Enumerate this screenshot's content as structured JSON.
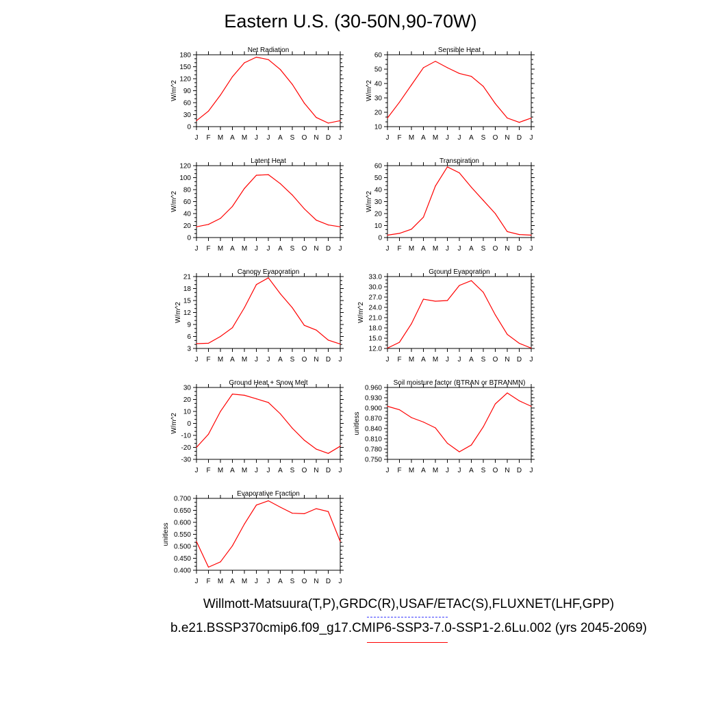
{
  "page": {
    "title": "Eastern U.S. (30-50N,90-70W)",
    "footer_line_1": "Willmott-Matsuura(T,P),GRDC(R),USAF/ETAC(S),FLUXNET(LHF,GPP)",
    "footer_line_2": "b.e21.BSSP370cmip6.f09_g17.CMIP6-SSP3-7.0-SSP1-2.6Lu.002 (yrs 2045-2069)",
    "line_color": "#ff0000",
    "observation_line_color": "#3a3aff"
  },
  "chart_data": [
    {
      "type": "line",
      "title": "Net Radiation",
      "ylabel": "W/m^2",
      "categories": [
        "J",
        "F",
        "M",
        "A",
        "M",
        "J",
        "J",
        "A",
        "S",
        "O",
        "N",
        "D",
        "J"
      ],
      "ylim": [
        0,
        180
      ],
      "yticks": [
        "0",
        "30",
        "60",
        "90",
        "120",
        "150",
        "180"
      ],
      "series": [
        {
          "values": [
            15,
            39,
            79,
            125,
            160,
            174,
            168,
            143,
            106,
            59,
            23,
            9,
            15
          ]
        }
      ]
    },
    {
      "type": "line",
      "title": "Sensible Heat",
      "ylabel": "W/m^2",
      "categories": [
        "J",
        "F",
        "M",
        "A",
        "M",
        "J",
        "J",
        "A",
        "S",
        "O",
        "N",
        "D",
        "J"
      ],
      "ylim": [
        10,
        60
      ],
      "yticks": [
        "10",
        "20",
        "30",
        "40",
        "50",
        "60"
      ],
      "series": [
        {
          "values": [
            16,
            27,
            39,
            51,
            55.5,
            51,
            47,
            45,
            38,
            26,
            16,
            13,
            16
          ]
        }
      ]
    },
    {
      "type": "line",
      "title": "Latent Heat",
      "ylabel": "W/m^2",
      "categories": [
        "J",
        "F",
        "M",
        "A",
        "M",
        "J",
        "J",
        "A",
        "S",
        "O",
        "N",
        "D",
        "J"
      ],
      "ylim": [
        0,
        120
      ],
      "yticks": [
        "0",
        "20",
        "40",
        "60",
        "80",
        "100",
        "120"
      ],
      "series": [
        {
          "values": [
            18,
            22,
            32,
            52,
            82,
            104,
            105,
            90,
            71,
            48,
            29,
            21,
            18
          ]
        }
      ]
    },
    {
      "type": "line",
      "title": "Transpiration",
      "ylabel": "W/m^2",
      "categories": [
        "J",
        "F",
        "M",
        "A",
        "M",
        "J",
        "J",
        "A",
        "S",
        "O",
        "N",
        "D",
        "J"
      ],
      "ylim": [
        0,
        60
      ],
      "yticks": [
        "0",
        "10",
        "20",
        "30",
        "40",
        "50",
        "60"
      ],
      "series": [
        {
          "values": [
            2,
            3.5,
            7,
            17,
            43,
            59,
            54,
            42,
            31,
            20,
            5,
            2.5,
            2
          ]
        }
      ]
    },
    {
      "type": "line",
      "title": "Canopy Evaporation",
      "ylabel": "W/m^2",
      "categories": [
        "J",
        "F",
        "M",
        "A",
        "M",
        "J",
        "J",
        "A",
        "S",
        "O",
        "N",
        "D",
        "J"
      ],
      "ylim": [
        3,
        21
      ],
      "yticks": [
        "3",
        "6",
        "9",
        "12",
        "15",
        "18",
        "21"
      ],
      "series": [
        {
          "values": [
            4.2,
            4.3,
            6,
            8.2,
            13.2,
            19,
            20.7,
            16.7,
            13.2,
            8.8,
            7.6,
            5.1,
            4.1
          ]
        }
      ]
    },
    {
      "type": "line",
      "title": "Ground Evaporation",
      "ylabel": "W/m^2",
      "categories": [
        "J",
        "F",
        "M",
        "A",
        "M",
        "J",
        "J",
        "A",
        "S",
        "O",
        "N",
        "D",
        "J"
      ],
      "ylim": [
        12,
        33
      ],
      "yticks": [
        "12.0",
        "15.0",
        "18.0",
        "21.0",
        "24.0",
        "27.0",
        "30.0",
        "33.0"
      ],
      "series": [
        {
          "values": [
            12.1,
            13.8,
            19.2,
            26.4,
            25.8,
            26,
            30.4,
            31.8,
            28.4,
            21.8,
            16.1,
            13.5,
            12.1
          ]
        }
      ]
    },
    {
      "type": "line",
      "title": "Ground Heat + Snow Melt",
      "ylabel": "W/m^2",
      "categories": [
        "J",
        "F",
        "M",
        "A",
        "M",
        "J",
        "J",
        "A",
        "S",
        "O",
        "N",
        "D",
        "J"
      ],
      "ylim": [
        -30,
        30
      ],
      "yticks": [
        "-30",
        "-20",
        "-10",
        "0",
        "10",
        "20",
        "30"
      ],
      "series": [
        {
          "values": [
            -20,
            -9,
            10,
            24.5,
            23.5,
            20.5,
            17.5,
            8,
            -4,
            -14,
            -21.5,
            -25,
            -19
          ]
        }
      ]
    },
    {
      "type": "line",
      "title": "Soil moisture factor (BTRAN or BTRANMN)",
      "ylabel": "unitless",
      "categories": [
        "J",
        "F",
        "M",
        "A",
        "M",
        "J",
        "J",
        "A",
        "S",
        "O",
        "N",
        "D",
        "J"
      ],
      "ylim": [
        0.75,
        0.96
      ],
      "yticks": [
        "0.750",
        "0.780",
        "0.810",
        "0.840",
        "0.870",
        "0.900",
        "0.930",
        "0.960"
      ],
      "series": [
        {
          "values": [
            0.905,
            0.895,
            0.872,
            0.859,
            0.842,
            0.797,
            0.772,
            0.792,
            0.845,
            0.912,
            0.944,
            0.921,
            0.905
          ]
        }
      ]
    },
    {
      "type": "line",
      "title": "Evaporative Fraction",
      "ylabel": "unitless",
      "categories": [
        "J",
        "F",
        "M",
        "A",
        "M",
        "J",
        "J",
        "A",
        "S",
        "O",
        "N",
        "D",
        "J"
      ],
      "ylim": [
        0.4,
        0.7
      ],
      "yticks": [
        "0.400",
        "0.450",
        "0.500",
        "0.550",
        "0.600",
        "0.650",
        "0.700"
      ],
      "series": [
        {
          "values": [
            0.52,
            0.413,
            0.435,
            0.502,
            0.593,
            0.672,
            0.69,
            0.663,
            0.638,
            0.636,
            0.657,
            0.645,
            0.52
          ]
        }
      ]
    }
  ]
}
